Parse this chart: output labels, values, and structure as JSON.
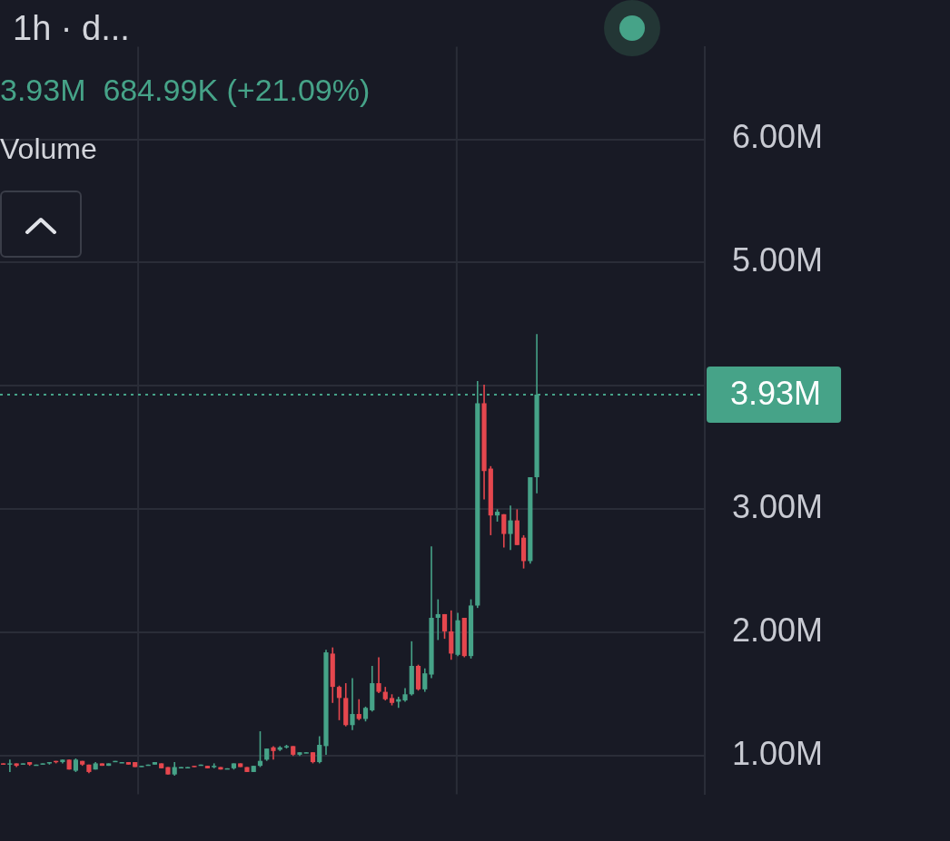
{
  "chart_data": {
    "type": "candlestick",
    "title": "1h · d...",
    "subtitle": "3.93M  684.99K (+21.09%)",
    "annotations": [
      "Volume"
    ],
    "categories": [
      null,
      null,
      null,
      null,
      null,
      null,
      null,
      null,
      null,
      null,
      null,
      null,
      null,
      null,
      null,
      null,
      null,
      null,
      null,
      null,
      null,
      null,
      null,
      null,
      null,
      null,
      null,
      null,
      null,
      null,
      null,
      null,
      null,
      null,
      null,
      null,
      null,
      null,
      null,
      null,
      null,
      null,
      null,
      null,
      null,
      null,
      null,
      null,
      null,
      null,
      null,
      null,
      null,
      null,
      null,
      null,
      null,
      null,
      null,
      null,
      null,
      null,
      null,
      null,
      null,
      null,
      null,
      null,
      null,
      null,
      null,
      null,
      null,
      null,
      null,
      null,
      null,
      null,
      null,
      null,
      null,
      null,
      null,
      null,
      null,
      null,
      null,
      null,
      null,
      null,
      null,
      null,
      null,
      null,
      null,
      null,
      null,
      null,
      null,
      null,
      null,
      null,
      null,
      null,
      null,
      null,
      null
    ],
    "ohlc": [
      [
        0.94,
        0.94,
        0.93,
        0.93
      ],
      [
        0.93,
        0.97,
        0.87,
        0.94
      ],
      [
        0.94,
        0.94,
        0.91,
        0.92
      ],
      [
        0.93,
        0.94,
        0.93,
        0.94
      ],
      [
        0.95,
        0.95,
        0.92,
        0.93
      ],
      [
        0.93,
        0.93,
        0.93,
        0.93
      ],
      [
        0.93,
        0.94,
        0.93,
        0.94
      ],
      [
        0.94,
        0.95,
        0.93,
        0.95
      ],
      [
        0.96,
        0.96,
        0.94,
        0.95
      ],
      [
        0.95,
        0.97,
        0.94,
        0.97
      ],
      [
        0.97,
        0.97,
        0.89,
        0.89
      ],
      [
        0.88,
        0.98,
        0.87,
        0.97
      ],
      [
        0.96,
        0.96,
        0.92,
        0.93
      ],
      [
        0.93,
        0.93,
        0.86,
        0.87
      ],
      [
        0.89,
        0.95,
        0.89,
        0.94
      ],
      [
        0.94,
        0.94,
        0.92,
        0.92
      ],
      [
        0.92,
        0.94,
        0.92,
        0.94
      ],
      [
        0.95,
        0.96,
        0.95,
        0.96
      ],
      [
        0.95,
        0.95,
        0.95,
        0.95
      ],
      [
        0.95,
        0.95,
        0.93,
        0.93
      ],
      [
        0.95,
        0.95,
        0.91,
        0.91
      ],
      [
        0.92,
        0.92,
        0.92,
        0.92
      ],
      [
        0.93,
        0.93,
        0.93,
        0.93
      ],
      [
        0.93,
        0.95,
        0.93,
        0.95
      ],
      [
        0.94,
        0.94,
        0.9,
        0.9
      ],
      [
        0.91,
        0.91,
        0.85,
        0.85
      ],
      [
        0.85,
        0.95,
        0.84,
        0.91
      ],
      [
        0.91,
        0.91,
        0.91,
        0.91
      ],
      [
        0.91,
        0.91,
        0.91,
        0.91
      ],
      [
        0.92,
        0.92,
        0.91,
        0.91
      ],
      [
        0.93,
        0.93,
        0.93,
        0.93
      ],
      [
        0.92,
        0.92,
        0.9,
        0.9
      ],
      [
        0.91,
        0.94,
        0.9,
        0.92
      ],
      [
        0.91,
        0.91,
        0.89,
        0.89
      ],
      [
        0.9,
        0.9,
        0.9,
        0.9
      ],
      [
        0.9,
        0.94,
        0.89,
        0.94
      ],
      [
        0.94,
        0.94,
        0.91,
        0.91
      ],
      [
        0.91,
        0.91,
        0.87,
        0.87
      ],
      [
        0.87,
        0.92,
        0.87,
        0.92
      ],
      [
        0.92,
        1.2,
        0.91,
        0.96
      ],
      [
        0.97,
        1.06,
        0.96,
        1.06
      ],
      [
        1.07,
        1.08,
        0.97,
        1.04
      ],
      [
        1.05,
        1.08,
        1.04,
        1.07
      ],
      [
        1.07,
        1.09,
        1.06,
        1.08
      ],
      [
        1.08,
        1.08,
        1.0,
        1.01
      ],
      [
        1.01,
        1.03,
        1.0,
        1.03
      ],
      [
        1.03,
        1.03,
        1.03,
        1.03
      ],
      [
        1.03,
        1.03,
        0.94,
        0.95
      ],
      [
        0.95,
        1.16,
        0.94,
        1.09
      ],
      [
        1.08,
        1.86,
        1.01,
        1.84
      ],
      [
        1.83,
        1.88,
        1.43,
        1.56
      ],
      [
        1.56,
        1.57,
        1.29,
        1.47
      ],
      [
        1.47,
        1.59,
        1.24,
        1.25
      ],
      [
        1.25,
        1.63,
        1.21,
        1.34
      ],
      [
        1.34,
        1.46,
        1.29,
        1.3
      ],
      [
        1.3,
        1.4,
        1.28,
        1.39
      ],
      [
        1.37,
        1.73,
        1.36,
        1.59
      ],
      [
        1.59,
        1.8,
        1.51,
        1.52
      ],
      [
        1.52,
        1.56,
        1.45,
        1.46
      ],
      [
        1.47,
        1.5,
        1.41,
        1.43
      ],
      [
        1.44,
        1.48,
        1.39,
        1.46
      ],
      [
        1.45,
        1.55,
        1.44,
        1.5
      ],
      [
        1.5,
        1.93,
        1.49,
        1.73
      ],
      [
        1.73,
        1.74,
        1.53,
        1.54
      ],
      [
        1.54,
        1.71,
        1.52,
        1.67
      ],
      [
        1.66,
        2.7,
        1.63,
        2.12
      ],
      [
        2.12,
        2.27,
        1.94,
        2.15
      ],
      [
        2.15,
        2.15,
        1.95,
        2.01
      ],
      [
        2.01,
        2.18,
        1.78,
        1.83
      ],
      [
        1.82,
        2.16,
        1.81,
        2.1
      ],
      [
        2.12,
        2.12,
        1.8,
        1.81
      ],
      [
        1.81,
        2.27,
        1.79,
        2.22
      ],
      [
        2.22,
        4.04,
        2.2,
        3.86
      ],
      [
        3.86,
        4.01,
        3.08,
        3.31
      ],
      [
        3.33,
        3.35,
        2.79,
        2.95
      ],
      [
        2.95,
        3.0,
        2.9,
        2.98
      ],
      [
        2.96,
        2.96,
        2.69,
        2.8
      ],
      [
        2.8,
        3.03,
        2.67,
        2.91
      ],
      [
        2.91,
        3.0,
        2.71,
        2.71
      ],
      [
        2.77,
        2.79,
        2.52,
        2.58
      ],
      [
        2.58,
        3.26,
        2.56,
        3.26
      ],
      [
        3.26,
        4.42,
        3.13,
        3.93
      ],
      null,
      null,
      null,
      null,
      null,
      null,
      null,
      null,
      null,
      null,
      null,
      null,
      null,
      null,
      null,
      null,
      null,
      null,
      null,
      null,
      null,
      null,
      null,
      null,
      null
    ],
    "colors": [
      "#e5474e",
      "#46a388",
      "#e5474e",
      "#46a388",
      "#e5474e",
      "#46a388",
      "#46a388",
      "#46a388",
      "#e5474e",
      "#46a388",
      "#e5474e",
      "#46a388",
      "#e5474e",
      "#e5474e",
      "#46a388",
      "#e5474e",
      "#46a388",
      "#46a388",
      "#46a388",
      "#e5474e",
      "#e5474e",
      "#46a388",
      "#46a388",
      "#46a388",
      "#e5474e",
      "#e5474e",
      "#46a388",
      "#46a388",
      "#46a388",
      "#e5474e",
      "#46a388",
      "#e5474e",
      "#46a388",
      "#e5474e",
      "#46a388",
      "#46a388",
      "#e5474e",
      "#e5474e",
      "#46a388",
      "#46a388",
      "#46a388",
      "#e5474e",
      "#46a388",
      "#46a388",
      "#e5474e",
      "#46a388",
      "#46a388",
      "#e5474e",
      "#46a388",
      "#46a388",
      "#e5474e",
      "#e5474e",
      "#e5474e",
      "#46a388",
      "#e5474e",
      "#46a388",
      "#46a388",
      "#e5474e",
      "#e5474e",
      "#e5474e",
      "#46a388",
      "#46a388",
      "#46a388",
      "#e5474e",
      "#46a388",
      "#46a388",
      "#46a388",
      "#e5474e",
      "#e5474e",
      "#46a388",
      "#e5474e",
      "#46a388",
      "#46a388",
      "#e5474e",
      "#e5474e",
      "#46a388",
      "#e5474e",
      "#46a388",
      "#e5474e",
      "#e5474e",
      "#46a388",
      "#46a388",
      null,
      null,
      null,
      null,
      null,
      null,
      null,
      null,
      null,
      null,
      null,
      null,
      null,
      null,
      null,
      null,
      null,
      null,
      null,
      null,
      null,
      null,
      null,
      null,
      null
    ],
    "ylim": [
      0.69,
      6.75
    ],
    "yticks": [
      {
        "value": 1,
        "label": "1.00M"
      },
      {
        "value": 2,
        "label": "2.00M"
      },
      {
        "value": 3,
        "label": "3.00M"
      },
      {
        "value": 4,
        "label": null
      },
      {
        "value": 5,
        "label": "5.00M"
      },
      {
        "value": 6,
        "label": "6.00M"
      }
    ],
    "ref_lines": [
      {
        "axis": "y",
        "value": 3.93,
        "label": "3.93M",
        "color": "#46a388",
        "line_style": "dotted"
      }
    ],
    "grid": true
  }
}
